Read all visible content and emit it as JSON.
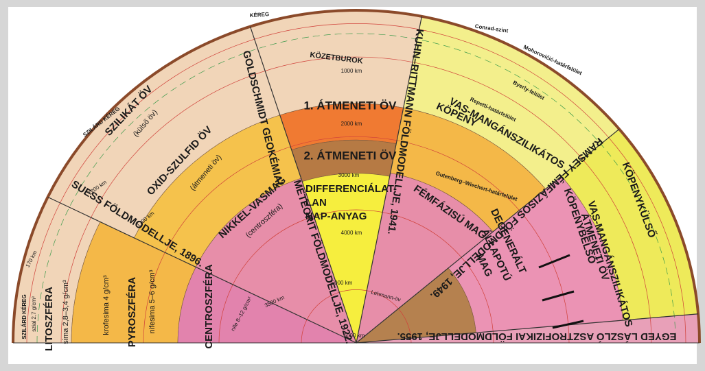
{
  "crust": "KÉREG",
  "depths": [
    "1000 km",
    "2000 km",
    "3000 km",
    "4000 km",
    "5000 km",
    "6000 km",
    "3500 km",
    "1200 km",
    "1700 km",
    "170 km"
  ],
  "boundaries": [
    "Conrad-szint",
    "Mohorovičić-határfelület",
    "Byerly-felület",
    "Repetti-határfelület",
    "Gutenberg–Wiechert-határfelület",
    "Lehmann-öv"
  ],
  "suess": {
    "model": "SUESS FÖLDMODELLJE, 1896.",
    "layers": [
      "SZILÁRD KÉREG",
      "szial 2,7 g/cm³",
      "LITOSZFÉRA",
      "sima 2,8–3,4 g/cm³",
      "krofesima 4 g/cm³",
      "PYROSZFÉRA",
      "nifesima 5–6 g/cm³",
      "CENTROSZFÉRA",
      "nife 8–12 g/cm³"
    ]
  },
  "goldschmidt": {
    "model": "GOLDSCHMIDT GEOKÉMIAI",
    "layers": [
      "SZILÁRD KÉREG",
      "SZILIKÁT ÖV",
      "(külső öv)",
      "OXID-SZULFID ÖV",
      "(átmeneti öv)",
      "NIKKEL-VASMAG",
      "(centroszféra)"
    ]
  },
  "meteorit": {
    "model": "METEORIT FÖLDMODELLJE, 1922."
  },
  "kuhn": {
    "model": "KUHN–RITTMANN FÖLDMODELLJE, 1941.",
    "layers": [
      "KÖZETBUROK",
      "1. ÁTMENETI ÖV",
      "2. ÁTMENETI ÖV",
      "DIFFERENCIÁLAT-",
      "LAN",
      "NAP-ANYAG"
    ]
  },
  "ramsey": {
    "model": "RAMSEY FÉMFÁZISOS FÖLDMODELLJE, 1949.",
    "layers": [
      "VAS-MANGÁNSZILIKÁTOS",
      "KÖPENY",
      "FÉMFÁZISÚ MAG",
      "DEGENERÁLT",
      "ÁLLAPOTÚ",
      "MAG"
    ]
  },
  "egyed": {
    "model": "EGYED LÁSZLÓ ASZTROFIZIKAI FÖLDMODELLJE, 1955.",
    "layers": [
      "KÖPENYKÜLSŐ",
      "VAS-MANGÁNSZILIKÁTOS",
      "ÁTMENETI ÖV",
      "KÖPENYBELSŐ"
    ]
  }
}
